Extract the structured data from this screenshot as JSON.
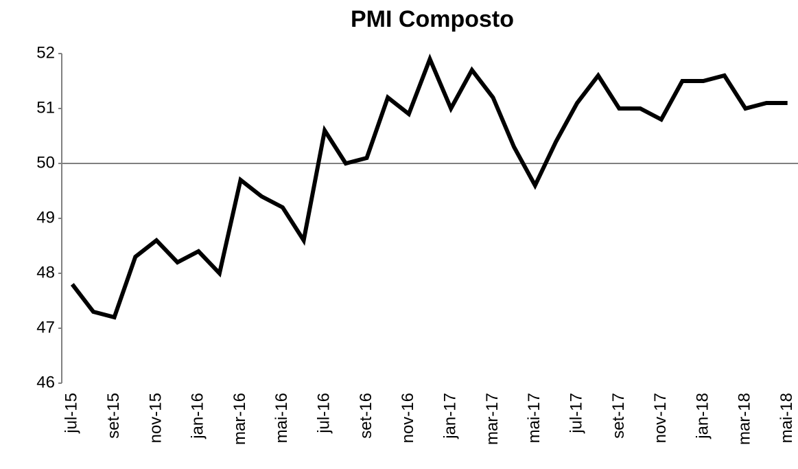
{
  "chart_data": {
    "type": "line",
    "title": "PMI Composto",
    "categories": [
      "jul-15",
      null,
      "set-15",
      null,
      "nov-15",
      null,
      "jan-16",
      null,
      "mar-16",
      null,
      "mai-16",
      null,
      "jul-16",
      null,
      "set-16",
      null,
      "nov-16",
      null,
      "jan-17",
      null,
      "mar-17",
      null,
      "mai-17",
      null,
      "jul-17",
      null,
      "set-17",
      null,
      "nov-17",
      null,
      "jan-18",
      null,
      "mar-18",
      null,
      "mai-18"
    ],
    "series": [
      {
        "name": "PMI Composto",
        "color": "#000000",
        "values": [
          47.8,
          47.3,
          47.2,
          48.3,
          48.6,
          48.2,
          48.4,
          48.0,
          49.7,
          49.4,
          49.2,
          48.6,
          50.6,
          50.0,
          50.1,
          51.2,
          50.9,
          51.9,
          51.0,
          51.7,
          51.2,
          50.3,
          49.6,
          50.4,
          51.1,
          51.6,
          51.0,
          51.0,
          50.8,
          51.5,
          51.5,
          51.6,
          51.0,
          51.1,
          51.1
        ]
      }
    ],
    "ylim": [
      46,
      52
    ],
    "yticks": [
      46,
      47,
      48,
      49,
      50,
      51,
      52
    ],
    "x_axis_crosses": 50,
    "grid": false
  }
}
